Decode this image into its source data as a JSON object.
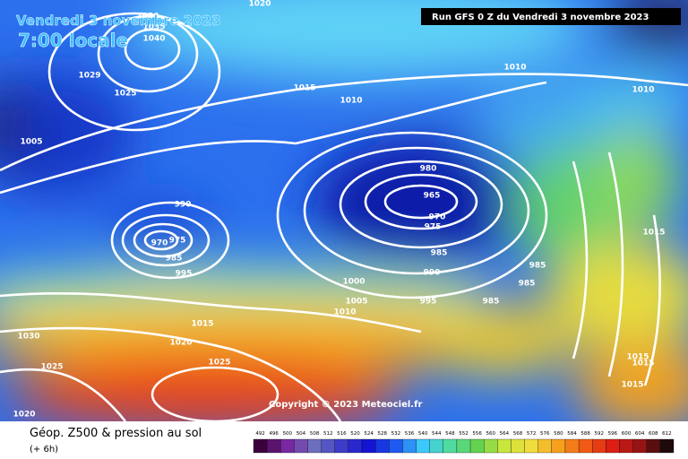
{
  "header": {
    "date": "Vendredi 3 novembre 2023",
    "time": "7:00 locale",
    "run": "Run GFS 0 Z du Vendredi 3 novembre 2023"
  },
  "copyright": "Copyright © 2023 Meteociel.fr",
  "isobar_labels": [
    "1020",
    "1030",
    "1035",
    "1040",
    "1029",
    "1025",
    "1015",
    "1010",
    "1010",
    "1010",
    "1005",
    "980",
    "965",
    "970",
    "975",
    "990",
    "970",
    "975",
    "985",
    "995",
    "985",
    "990",
    "1000",
    "1005",
    "1010",
    "995",
    "985",
    "985",
    "985",
    "1015",
    "1015",
    "1030",
    "1020",
    "1025",
    "1025",
    "1015",
    "1015",
    "1015",
    "1020"
  ],
  "legend": {
    "title": "Géop. Z500 & pression au sol",
    "subtitle": "(+ 6h)",
    "scale": [
      492,
      496,
      500,
      504,
      508,
      512,
      516,
      520,
      524,
      528,
      532,
      536,
      540,
      544,
      548,
      552,
      556,
      560,
      564,
      568,
      572,
      576,
      580,
      584,
      588,
      592,
      596,
      600,
      604,
      608,
      612
    ]
  }
}
